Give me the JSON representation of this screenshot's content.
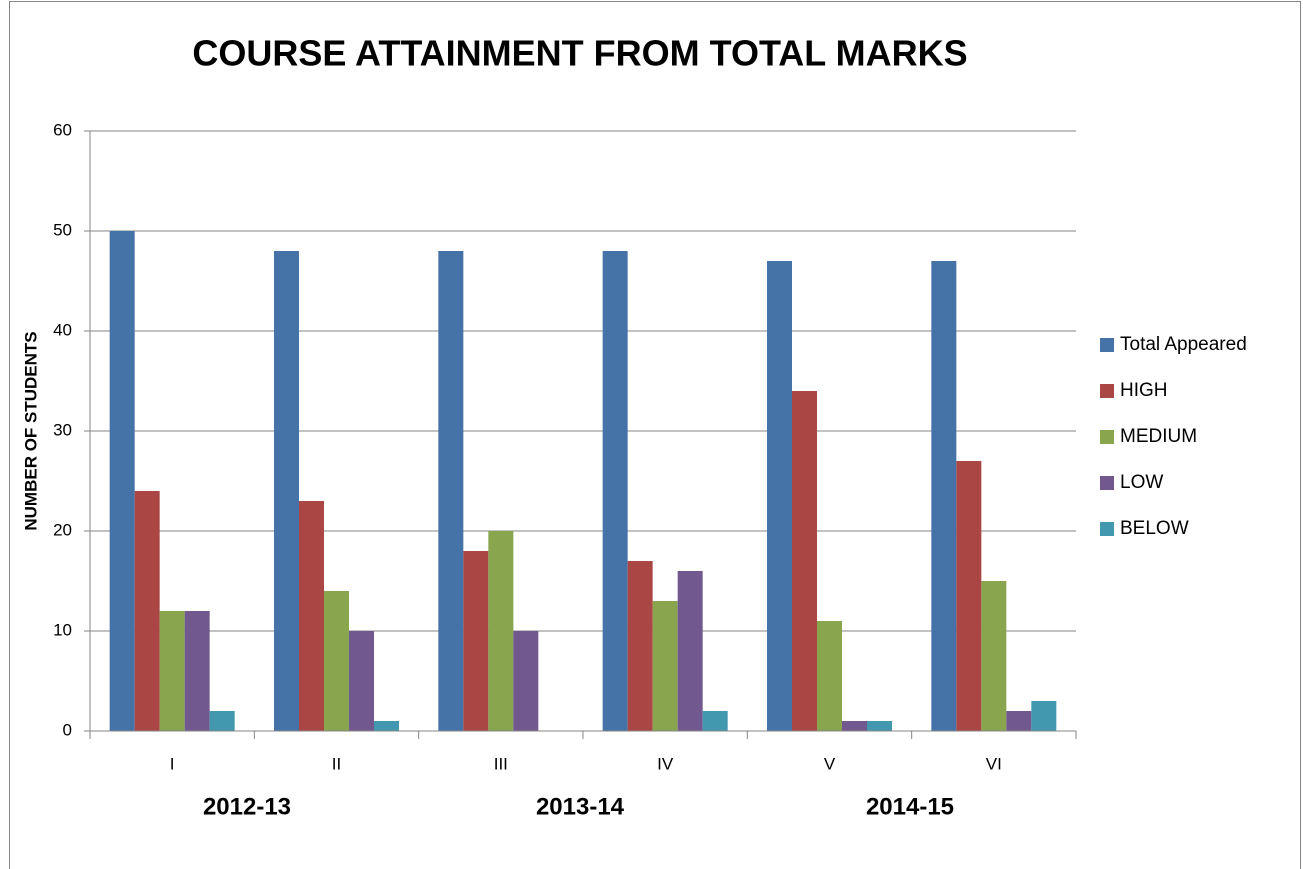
{
  "chart_data": {
    "type": "bar",
    "title": "COURSE ATTAINMENT FROM TOTAL MARKS",
    "y_label": "NUMBER OF STUDENTS",
    "categories": [
      "I",
      "II",
      "III",
      "IV",
      "V",
      "VI"
    ],
    "group_labels": [
      "2012-13",
      "2013-14",
      "2014-15"
    ],
    "series": [
      {
        "name": "Total Appeared",
        "color": "#4572a7",
        "values": [
          50,
          48,
          48,
          48,
          47,
          47
        ]
      },
      {
        "name": "HIGH",
        "color": "#aa4643",
        "values": [
          24,
          23,
          18,
          17,
          34,
          27
        ]
      },
      {
        "name": "MEDIUM",
        "color": "#89a54e",
        "values": [
          12,
          14,
          20,
          13,
          11,
          15
        ]
      },
      {
        "name": "LOW",
        "color": "#71588f",
        "values": [
          12,
          10,
          10,
          16,
          1,
          2
        ]
      },
      {
        "name": "BELOW",
        "color": "#4198af",
        "values": [
          2,
          1,
          0,
          2,
          1,
          3
        ]
      }
    ],
    "ylim": [
      0,
      60
    ],
    "yticks": [
      0,
      10,
      20,
      30,
      40,
      50,
      60
    ],
    "grid": true,
    "legend": "right"
  }
}
